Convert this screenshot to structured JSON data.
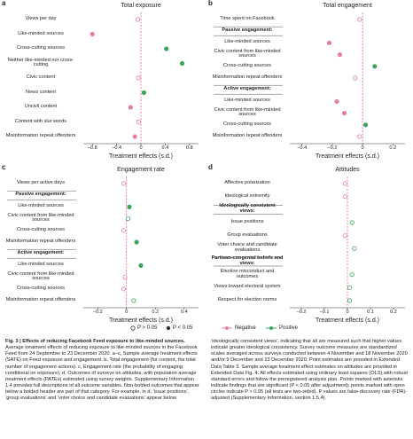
{
  "chart_data": [
    {
      "type": "dot",
      "label": "a",
      "title": "Total exposure",
      "categories": [
        "Views per day",
        "Like-minded sources",
        "Cross-cutting sources",
        "Neither like-minded nor cross-cutting",
        "Civic content",
        "News content",
        "Uncivil content",
        "Content with slur words",
        "Misinformation repeat offenders"
      ],
      "values": [
        -0.05,
        -0.8,
        0.42,
        0.68,
        -0.04,
        0.05,
        -0.17,
        -0.04,
        -0.1
      ],
      "significant": [
        false,
        true,
        true,
        true,
        false,
        true,
        true,
        false,
        true
      ],
      "xlim": [
        -0.95,
        0.95
      ],
      "xticks": [
        {
          "value": -0.8,
          "label": "−0.8"
        },
        {
          "value": -0.4,
          "label": "−0.4"
        },
        0,
        0.4,
        0.8
      ],
      "xlabel": "Treatment effects (s.d.)"
    },
    {
      "type": "dot",
      "label": "b",
      "title": "Total engagement",
      "categories": [
        "Time spent on Facebook",
        "Passive engagement:",
        "Like-minded sources",
        "Civic content from like-minded sources",
        "Cross-cutting sources",
        "Misinformation repeat offenders",
        "Active engagement:",
        "Like-minded sources",
        "Civic content from like-minded sources",
        "Cross-cutting sources",
        "Misinformation repeat offenders"
      ],
      "values": [
        -0.02,
        null,
        -0.22,
        -0.15,
        0.08,
        -0.05,
        null,
        -0.17,
        -0.12,
        0.02,
        -0.02
      ],
      "significant": [
        false,
        null,
        true,
        true,
        true,
        false,
        null,
        true,
        true,
        true,
        false
      ],
      "xlim": [
        -0.48,
        0.28
      ],
      "xticks": [
        {
          "value": -0.4,
          "label": "−0.4"
        },
        {
          "value": -0.2,
          "label": "−0.2"
        },
        0,
        0.2
      ],
      "xlabel": "Treatment effects (s.d.)"
    },
    {
      "type": "dot",
      "label": "c",
      "title": "Engagement rate",
      "categories": [
        "Views per active days",
        "Passive engagement:",
        "Like-minded sources",
        "Civic content from like-minded sources",
        "Cross-cutting sources",
        "Misinformation repeat offenders",
        "Active engagement:",
        "Like-minded sources",
        "Civic content from like-minded sources",
        "Cross-cutting sources",
        "Misinformation repeat offenders"
      ],
      "values": [
        -0.02,
        null,
        0.02,
        0.01,
        -0.02,
        0.07,
        null,
        0.1,
        -0.01,
        -0.02,
        0.05
      ],
      "significant": [
        false,
        null,
        true,
        false,
        false,
        true,
        null,
        true,
        false,
        false,
        false
      ],
      "xlim": [
        -0.3,
        0.5
      ],
      "xticks": [
        {
          "value": -0.2,
          "label": "−0.2"
        },
        0,
        0.2,
        0.4
      ],
      "xlabel": "Treatment effects (s.d.)"
    },
    {
      "type": "dot",
      "label": "d",
      "title": "Attitudes",
      "categories": [
        "Affective polarization",
        "Ideological extremity",
        "Ideologically consistent views:",
        "Issue positions",
        "Group evaluations",
        "Voter choice and candidate evaluations",
        "Partisan-congenial beliefs and views:",
        "Election misconduct and outcomes",
        "Views toward electoral system",
        "Respect for election norms"
      ],
      "values": [
        -0.01,
        -0.01,
        null,
        0.02,
        -0.01,
        0.03,
        null,
        0.02,
        0.01,
        0.01
      ],
      "significant": [
        false,
        false,
        null,
        false,
        false,
        false,
        null,
        false,
        false,
        false
      ],
      "xlim": [
        -0.25,
        0.25
      ],
      "xticks": [
        {
          "value": -0.2,
          "label": "−0.2"
        },
        {
          "value": -0.1,
          "label": "−0.1"
        },
        0,
        0.1,
        0.2
      ],
      "xlabel": "Treatment effects (s.d.)"
    }
  ],
  "colors": {
    "negative": "#e57fa0",
    "positive": "#3aa65a"
  },
  "legend": {
    "significance": [
      "P > 0.05",
      "P < 0.05"
    ],
    "direction": [
      "Negative",
      "Positive"
    ]
  },
  "caption": {
    "heading": "Fig. 3 | Effects of reducing Facebook Feed exposure to like-minded sources.",
    "left": "Average treatment effects of reducing exposure to like-minded sources in the Facebook Feed from 24 September to 23 December 2020. a–c, Sample average treatment effects (SATE) on Feed exposure and engagement. b, Total engagement (for content, the total number of engagement actions). c, Engagement rate (the probability of engaging conditional on exposure). d, Outcomes of surveys on attitudes, with population average treatment effects (PATEs) estimated using survey weights. Supplementary Information 1.4 provides full descriptions of all outcome variables. Non-bolded outcomes that appear below a bolded header are part of that category. For example, in d, ‘issue positions’, ‘group evaluations’ and ‘voter choice and candidate evaluations’ appear below",
    "right": "‘ideologically consistent views’, indicating that all are measured such that higher values indicate greater ideological consistency. Survey outcome measures are standardized scales averaged across surveys conducted between 4 November and 18 November 2020 and/or 9 December and 23 December 2020. Point estimates are provided in Extended Data Table 3. Sample average treatment effect estimates on attitudes are provided in Extended Data Fig. 4. All effects estimated using ordinary least squares (OLS) with robust standard errors and follow the preregistered analysis plan. Points marked with asterisks indicate findings that are significant (P < 0.05 after adjustment); points marked with open circles indicate P > 0.05 (all tests are two-sided). P values are false-discovery rate (FDR)-adjusted (Supplementary Information, section 1.5.4)."
  }
}
